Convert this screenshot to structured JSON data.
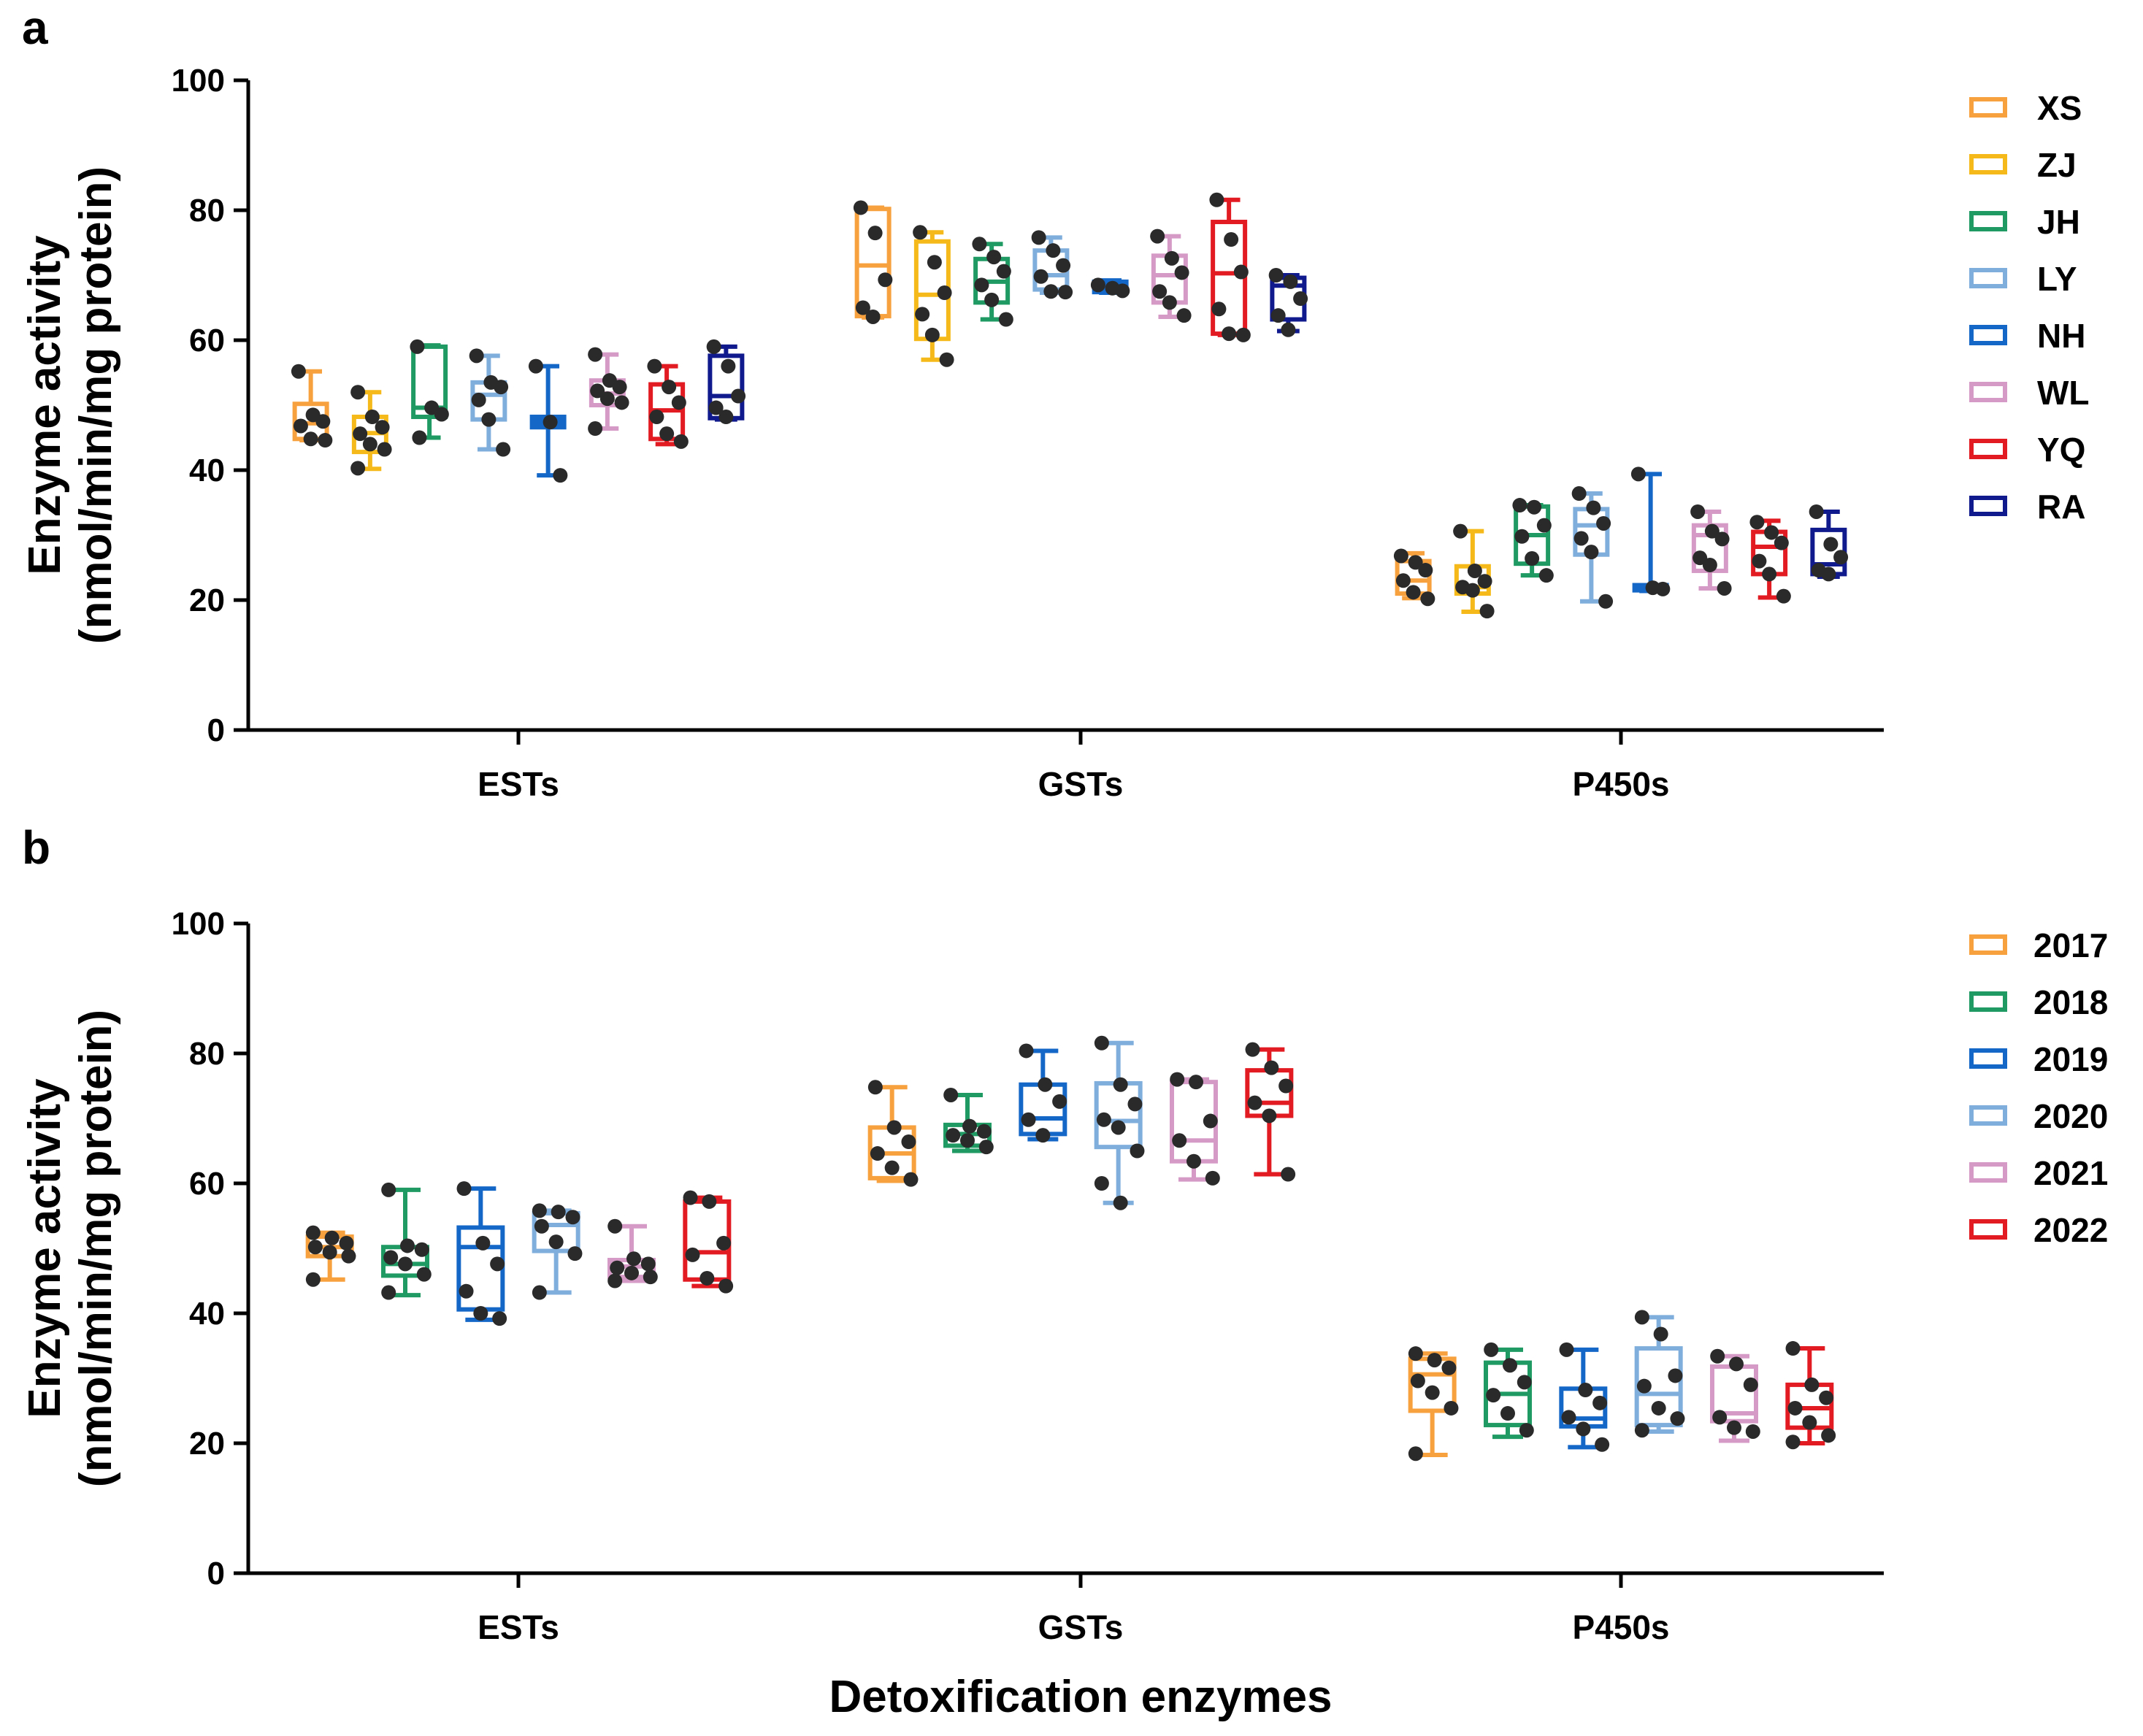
{
  "chart_data": [
    {
      "panel": "a",
      "type": "box",
      "ylabel_line1": "Enzyme activity",
      "ylabel_line2": "(nmol/min/mg protein)",
      "xlabel": "",
      "ylim": [
        0,
        100
      ],
      "yticks": [
        "0",
        "20",
        "40",
        "60",
        "80",
        "100"
      ],
      "categories": [
        "ESTs",
        "GSTs",
        "P450s"
      ],
      "legend": [
        "XS",
        "ZJ",
        "JH",
        "LY",
        "NH",
        "WL",
        "YQ",
        "RA"
      ],
      "colors": [
        "#F7A13E",
        "#F5BA1A",
        "#1E9A62",
        "#7FAEDC",
        "#1467C7",
        "#D59BC6",
        "#E21A22",
        "#111A8C"
      ],
      "groups": [
        {
          "name": "XS",
          "ESTs": {
            "box": [
              44.8,
              50.2
            ],
            "median": 47.2,
            "whisk": [
              44.6,
              55.2
            ],
            "points": [
              55.2,
              48.5,
              47.5,
              46.8,
              44.8,
              44.6
            ]
          },
          "GSTs": {
            "box": [
              63.7,
              80.2
            ],
            "median": 71.5,
            "whisk": [
              63.5,
              80.4
            ],
            "points": [
              80.4,
              76.5,
              69.3,
              65.0,
              63.6
            ]
          },
          "P450s": {
            "box": [
              21.0,
              26.0
            ],
            "median": 23.0,
            "whisk": [
              20.3,
              27.2
            ],
            "points": [
              26.8,
              25.8,
              24.6,
              23.0,
              21.2,
              20.2
            ]
          }
        },
        {
          "name": "ZJ",
          "ESTs": {
            "box": [
              42.8,
              48.2
            ],
            "median": 45.7,
            "whisk": [
              40.2,
              52.0
            ],
            "points": [
              52.0,
              48.2,
              46.6,
              45.6,
              44.0,
              43.2,
              40.3
            ]
          },
          "GSTs": {
            "box": [
              60.2,
              75.2
            ],
            "median": 67.0,
            "whisk": [
              57.0,
              76.6
            ],
            "points": [
              76.6,
              72.0,
              67.3,
              64.0,
              60.8,
              57.0
            ]
          },
          "P450s": {
            "box": [
              21.0,
              25.2
            ],
            "median": 22.0,
            "whisk": [
              18.2,
              30.6
            ],
            "points": [
              30.6,
              24.5,
              22.9,
              22.0,
              21.5,
              18.3
            ]
          }
        },
        {
          "name": "JH",
          "ESTs": {
            "box": [
              48.2,
              59.0
            ],
            "median": 49.6,
            "whisk": [
              45.0,
              59.2
            ],
            "points": [
              59.0,
              49.6,
              48.6,
              45.0
            ]
          },
          "GSTs": {
            "box": [
              65.8,
              72.5
            ],
            "median": 69.0,
            "whisk": [
              63.2,
              74.8
            ],
            "points": [
              74.8,
              72.8,
              70.6,
              68.5,
              66.2,
              63.2
            ]
          },
          "P450s": {
            "box": [
              25.6,
              34.4
            ],
            "median": 30.0,
            "whisk": [
              23.8,
              34.6
            ],
            "points": [
              34.6,
              34.3,
              31.5,
              29.8,
              26.4,
              23.8
            ]
          }
        },
        {
          "name": "LY",
          "ESTs": {
            "box": [
              47.8,
              53.5
            ],
            "median": 51.6,
            "whisk": [
              43.2,
              57.6
            ],
            "points": [
              57.6,
              53.5,
              52.8,
              50.8,
              47.8,
              43.2
            ]
          },
          "GSTs": {
            "box": [
              67.8,
              73.8
            ],
            "median": 70.0,
            "whisk": [
              67.3,
              75.8
            ],
            "points": [
              75.8,
              73.8,
              71.5,
              69.8,
              67.5,
              67.4
            ]
          },
          "P450s": {
            "box": [
              27.0,
              34.0
            ],
            "median": 31.5,
            "whisk": [
              19.8,
              36.4
            ],
            "points": [
              36.4,
              34.2,
              31.8,
              29.5,
              27.4,
              19.8
            ]
          }
        },
        {
          "name": "NH",
          "ESTs": {
            "box": [
              46.6,
              48.2
            ],
            "median": 47.4,
            "whisk": [
              39.2,
              56.0
            ],
            "points": [
              56.0,
              47.4,
              39.2
            ]
          },
          "GSTs": {
            "box": [
              67.4,
              69.0
            ],
            "median": 68.2,
            "whisk": [
              67.3,
              69.2
            ],
            "points": [
              68.5,
              68.0,
              67.6
            ]
          },
          "P450s": {
            "box": [
              21.5,
              22.3
            ],
            "median": 21.9,
            "whisk": [
              21.4,
              39.4
            ],
            "points": [
              39.4,
              21.9,
              21.7
            ]
          }
        },
        {
          "name": "WL",
          "ESTs": {
            "box": [
              50.0,
              53.8
            ],
            "median": 51.8,
            "whisk": [
              46.4,
              57.8
            ],
            "points": [
              57.8,
              53.8,
              52.8,
              52.2,
              51.0,
              50.4,
              46.4
            ]
          },
          "GSTs": {
            "box": [
              65.8,
              73.0
            ],
            "median": 70.0,
            "whisk": [
              63.6,
              76.0
            ],
            "points": [
              76.0,
              72.6,
              70.4,
              67.5,
              65.8,
              63.8
            ]
          },
          "P450s": {
            "box": [
              24.5,
              31.5
            ],
            "median": 30.0,
            "whisk": [
              21.8,
              33.6
            ],
            "points": [
              33.6,
              30.6,
              29.4,
              26.5,
              25.4,
              21.8
            ]
          }
        },
        {
          "name": "YQ",
          "ESTs": {
            "box": [
              44.8,
              53.2
            ],
            "median": 49.2,
            "whisk": [
              44.0,
              56.0
            ],
            "points": [
              56.0,
              52.8,
              50.4,
              48.2,
              45.6,
              44.4
            ]
          },
          "GSTs": {
            "box": [
              61.0,
              78.2
            ],
            "median": 70.3,
            "whisk": [
              60.8,
              81.6
            ],
            "points": [
              81.6,
              75.5,
              70.5,
              64.8,
              61.0,
              60.8
            ]
          },
          "P450s": {
            "box": [
              24.0,
              30.5
            ],
            "median": 28.2,
            "whisk": [
              20.4,
              32.2
            ],
            "points": [
              32.0,
              30.4,
              28.8,
              26.0,
              24.0,
              20.6
            ]
          }
        },
        {
          "name": "RA",
          "ESTs": {
            "box": [
              48.0,
              57.6
            ],
            "median": 51.4,
            "whisk": [
              47.8,
              59.0
            ],
            "points": [
              59.0,
              56.0,
              51.4,
              49.6,
              48.2
            ]
          },
          "GSTs": {
            "box": [
              63.2,
              69.6
            ],
            "median": 68.4,
            "whisk": [
              61.4,
              70.0
            ],
            "points": [
              70.0,
              69.0,
              66.4,
              63.8,
              61.6
            ]
          },
          "P450s": {
            "box": [
              24.0,
              30.8
            ],
            "median": 25.5,
            "whisk": [
              23.6,
              33.6
            ],
            "points": [
              33.6,
              28.6,
              26.6,
              24.6,
              24.0
            ]
          }
        }
      ]
    },
    {
      "panel": "b",
      "type": "box",
      "ylabel_line1": "Enzyme activity",
      "ylabel_line2": "(nmol/min/mg protein)",
      "xlabel": "Detoxification enzymes",
      "ylim": [
        0,
        100
      ],
      "yticks": [
        "0",
        "20",
        "40",
        "60",
        "80",
        "100"
      ],
      "categories": [
        "ESTs",
        "GSTs",
        "P450s"
      ],
      "legend": [
        "2017",
        "2018",
        "2019",
        "2020",
        "2021",
        "2022"
      ],
      "colors": [
        "#F7A13E",
        "#1E9A62",
        "#1467C7",
        "#7FAEDC",
        "#D59BC6",
        "#E21A22"
      ],
      "groups": [
        {
          "name": "2017",
          "ESTs": {
            "box": [
              48.8,
              51.8
            ],
            "median": 50.2,
            "whisk": [
              45.2,
              52.4
            ],
            "points": [
              52.4,
              51.6,
              50.8,
              50.2,
              49.4,
              48.8,
              45.2
            ]
          },
          "GSTs": {
            "box": [
              60.8,
              68.6
            ],
            "median": 64.6,
            "whisk": [
              60.4,
              74.8
            ],
            "points": [
              74.8,
              68.6,
              66.4,
              64.6,
              62.4,
              60.6
            ]
          },
          "P450s": {
            "box": [
              25.0,
              33.0
            ],
            "median": 30.6,
            "whisk": [
              18.2,
              33.8
            ],
            "points": [
              33.8,
              32.8,
              31.6,
              29.6,
              27.8,
              25.4,
              18.4
            ]
          }
        },
        {
          "name": "2018",
          "ESTs": {
            "box": [
              45.8,
              50.2
            ],
            "median": 47.6,
            "whisk": [
              42.8,
              59.0
            ],
            "points": [
              59.0,
              50.4,
              49.8,
              48.6,
              47.6,
              46.0,
              43.2
            ]
          },
          "GSTs": {
            "box": [
              65.8,
              69.0
            ],
            "median": 67.6,
            "whisk": [
              65.0,
              73.6
            ],
            "points": [
              73.6,
              68.8,
              68.0,
              67.4,
              66.6,
              65.6
            ]
          },
          "P450s": {
            "box": [
              22.8,
              32.4
            ],
            "median": 27.6,
            "whisk": [
              21.0,
              34.4
            ],
            "points": [
              34.4,
              32.0,
              29.4,
              27.4,
              24.6,
              22.0
            ]
          }
        },
        {
          "name": "2019",
          "ESTs": {
            "box": [
              40.6,
              53.2
            ],
            "median": 50.2,
            "whisk": [
              39.0,
              59.2
            ],
            "points": [
              59.2,
              50.8,
              47.6,
              43.4,
              40.0,
              39.2
            ]
          },
          "GSTs": {
            "box": [
              67.6,
              75.2
            ],
            "median": 70.0,
            "whisk": [
              66.8,
              80.4
            ],
            "points": [
              80.4,
              75.2,
              72.6,
              69.8,
              67.4
            ]
          },
          "P450s": {
            "box": [
              22.6,
              28.4
            ],
            "median": 23.8,
            "whisk": [
              19.4,
              34.4
            ],
            "points": [
              34.4,
              28.2,
              26.2,
              24.0,
              22.2,
              19.8
            ]
          }
        },
        {
          "name": "2020",
          "ESTs": {
            "box": [
              49.6,
              55.4
            ],
            "median": 53.6,
            "whisk": [
              43.2,
              55.8
            ],
            "points": [
              55.8,
              55.6,
              54.8,
              53.4,
              51.0,
              49.2,
              43.2
            ]
          },
          "GSTs": {
            "box": [
              65.6,
              75.4
            ],
            "median": 69.6,
            "whisk": [
              57.0,
              81.6
            ],
            "points": [
              81.6,
              75.2,
              72.2,
              69.8,
              68.6,
              65.0,
              60.0,
              57.0
            ]
          },
          "P450s": {
            "box": [
              22.8,
              34.6
            ],
            "median": 27.6,
            "whisk": [
              21.8,
              39.4
            ],
            "points": [
              39.4,
              36.8,
              30.4,
              28.8,
              25.4,
              23.8,
              22.0
            ]
          }
        },
        {
          "name": "2021",
          "ESTs": {
            "box": [
              45.6,
              48.2
            ],
            "median": 47.2,
            "whisk": [
              45.0,
              53.4
            ],
            "points": [
              53.4,
              48.4,
              47.6,
              47.0,
              46.2,
              45.6,
              45.0
            ]
          },
          "GSTs": {
            "box": [
              63.4,
              75.6
            ],
            "median": 66.6,
            "whisk": [
              60.6,
              76.0
            ],
            "points": [
              76.0,
              75.6,
              69.6,
              66.6,
              63.4,
              60.8
            ]
          },
          "P450s": {
            "box": [
              23.4,
              31.8
            ],
            "median": 24.6,
            "whisk": [
              20.4,
              33.4
            ],
            "points": [
              33.4,
              32.2,
              29.0,
              24.0,
              22.4,
              21.8
            ]
          }
        },
        {
          "name": "2022",
          "ESTs": {
            "box": [
              45.2,
              57.2
            ],
            "median": 49.4,
            "whisk": [
              44.2,
              57.8
            ],
            "points": [
              57.8,
              57.2,
              50.8,
              49.0,
              45.4,
              44.2
            ]
          },
          "GSTs": {
            "box": [
              70.4,
              77.4
            ],
            "median": 72.4,
            "whisk": [
              61.4,
              80.6
            ],
            "points": [
              80.6,
              77.8,
              75.0,
              72.4,
              70.4,
              61.4
            ]
          },
          "P450s": {
            "box": [
              22.4,
              29.0
            ],
            "median": 25.4,
            "whisk": [
              20.0,
              34.6
            ],
            "points": [
              34.6,
              29.0,
              27.0,
              25.4,
              23.2,
              21.2,
              20.2
            ]
          }
        }
      ]
    }
  ]
}
